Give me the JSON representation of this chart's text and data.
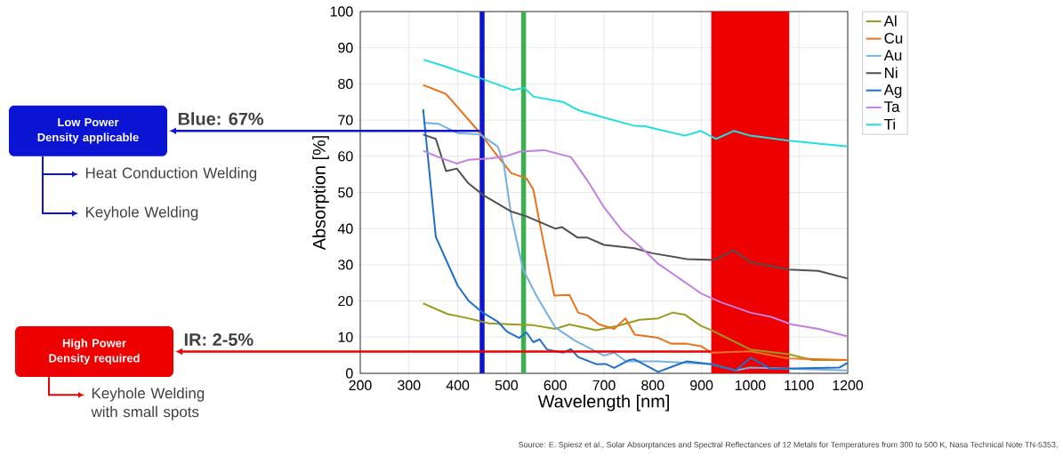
{
  "chart_data": {
    "type": "line",
    "xlabel": "Wavelength [nm]",
    "ylabel": "Absorption [%]",
    "xlim": [
      200,
      1200
    ],
    "ylim": [
      0,
      100
    ],
    "xticks": [
      200,
      300,
      400,
      500,
      600,
      700,
      800,
      900,
      1000,
      1100,
      1200
    ],
    "yticks": [
      0,
      10,
      20,
      30,
      40,
      50,
      60,
      70,
      80,
      90,
      100
    ],
    "grid": true,
    "legend": "right",
    "marker": "none",
    "line_style": "solid",
    "series": [
      {
        "name": "Al",
        "color": "#9a9a1e",
        "x": [
          329,
          379,
          422,
          464,
          513,
          555,
          600,
          629,
          684,
          727,
          773,
          811,
          841,
          866,
          899,
          921,
          1000,
          1079,
          1128,
          1200
        ],
        "values": [
          19.3,
          16.4,
          15.2,
          13.8,
          13.5,
          13.3,
          12.3,
          13.5,
          11.9,
          13.1,
          14.8,
          15.2,
          16.8,
          16.2,
          13.1,
          11.9,
          6.6,
          5.3,
          3.7,
          3.7
        ]
      },
      {
        "name": "Cu",
        "color": "#e8731a",
        "x": [
          329,
          376,
          446,
          476,
          510,
          541,
          555,
          570,
          598,
          629,
          647,
          666,
          690,
          721,
          744,
          763,
          811,
          838,
          869,
          899,
          921,
          1000,
          1079,
          1200
        ],
        "values": [
          79.7,
          77.2,
          66.4,
          61,
          55.3,
          53.9,
          50.8,
          40.2,
          21.5,
          21.7,
          16.8,
          16,
          13.5,
          12.3,
          15.2,
          10.7,
          9.8,
          8.2,
          8.2,
          7.5,
          5.7,
          6.1,
          4.1,
          3.7
        ]
      },
      {
        "name": "Au",
        "color": "#74b0e0",
        "x": [
          329,
          360,
          400,
          446,
          482,
          494,
          510,
          534,
          562,
          600,
          641,
          700,
          721,
          745,
          811,
          921,
          970,
          1000,
          1200
        ],
        "values": [
          69.3,
          69,
          66.4,
          66,
          62.7,
          58.2,
          43.4,
          28.7,
          21.3,
          12.7,
          9,
          4.9,
          5.7,
          3.3,
          3.3,
          2.5,
          0.8,
          1.6,
          0.8
        ]
      },
      {
        "name": "Ni",
        "color": "#505050",
        "x": [
          329,
          355,
          376,
          398,
          422,
          452,
          510,
          541,
          600,
          614,
          646,
          666,
          700,
          762,
          799,
          869,
          927,
          966,
          1000,
          1079,
          1140,
          1200
        ],
        "values": [
          66,
          64.8,
          55.9,
          56.6,
          52.5,
          49.3,
          44.7,
          43.4,
          40,
          40.4,
          37.5,
          37.5,
          35.5,
          34.6,
          33.2,
          31.6,
          31.3,
          34,
          30.7,
          28.7,
          28.3,
          26.2
        ]
      },
      {
        "name": "Ag",
        "color": "#1e6fc8",
        "x": [
          329,
          355,
          400,
          422,
          449,
          482,
          501,
          526,
          541,
          555,
          568,
          583,
          616,
          632,
          647,
          685,
          703,
          721,
          752,
          762,
          811,
          869,
          921,
          970,
          1001,
          1043,
          1183,
          1200
        ],
        "values": [
          73,
          37.7,
          24.2,
          20.1,
          17,
          14.3,
          11.5,
          9.8,
          11.3,
          8.6,
          9.4,
          6.6,
          5.7,
          6.7,
          4.5,
          2.5,
          2.6,
          1.5,
          3.7,
          3.9,
          0.4,
          3.3,
          2.5,
          0.8,
          4.3,
          1.2,
          1.6,
          2.9
        ]
      },
      {
        "name": "Ta",
        "color": "#c37fe0",
        "x": [
          329,
          360,
          398,
          422,
          467,
          501,
          528,
          577,
          632,
          666,
          700,
          738,
          773,
          811,
          899,
          939,
          1000,
          1043,
          1085,
          1140,
          1200
        ],
        "values": [
          61.5,
          59.8,
          58,
          59,
          59.4,
          60.1,
          61.3,
          61.7,
          59.8,
          53.3,
          45.9,
          39.3,
          35.2,
          30.3,
          22.1,
          19.7,
          16.8,
          15.6,
          13.5,
          12.3,
          10.2
        ]
      },
      {
        "name": "Ti",
        "color": "#22dede",
        "x": [
          330,
          370,
          400,
          446,
          513,
          537,
          555,
          616,
          646,
          700,
          763,
          784,
          866,
          899,
          930,
          966,
          1000,
          1079,
          1200
        ],
        "values": [
          86.7,
          85,
          83.6,
          81.6,
          78.3,
          78.9,
          76.5,
          75,
          72.8,
          70.7,
          68.4,
          68.3,
          65.7,
          67,
          64.8,
          67,
          65.7,
          64.3,
          62.7
        ]
      }
    ],
    "bands": [
      {
        "axis": "x",
        "from": 445,
        "to": 455,
        "color": "#0a14d2"
      },
      {
        "axis": "x",
        "from": 530,
        "to": 540,
        "color": "#3cb050"
      },
      {
        "axis": "x",
        "from": 920,
        "to": 1080,
        "color": "#ee0000"
      }
    ],
    "ref_lines": [
      {
        "axis": "y",
        "value": 67,
        "label": "Blue: 67%",
        "color": "#0a14d2"
      },
      {
        "axis": "y",
        "value": 6,
        "color": "#ee0000"
      }
    ],
    "annotations": [
      "Low Power Density applicable",
      "Heat Conduction Welding",
      "Keyhole Welding",
      "High Power Density required",
      "Keyhole Welding with small spots",
      "Source: E. Spiesz et al., Solar Absorptances and Spectral Reflectances of 12 Metals for Temperatures from 300 to 500 K, Nasa Technical Note TN-5353,",
      "IR: 2-5%"
    ]
  }
}
